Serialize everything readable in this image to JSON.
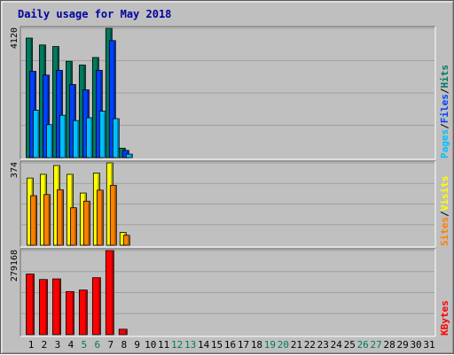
{
  "chart_data": {
    "type": "bar",
    "title": "Daily usage for May 2018",
    "categories": [
      "1",
      "2",
      "3",
      "4",
      "5",
      "6",
      "7",
      "8",
      "9",
      "10",
      "11",
      "12",
      "13",
      "14",
      "15",
      "16",
      "17",
      "18",
      "19",
      "20",
      "21",
      "22",
      "23",
      "24",
      "25",
      "26",
      "27",
      "28",
      "29",
      "30",
      "31"
    ],
    "weekend_days": [
      "5",
      "6",
      "12",
      "13",
      "19",
      "20",
      "26",
      "27"
    ],
    "colors": {
      "hits": "#007a5e",
      "files": "#0040ff",
      "pages": "#00c0ff",
      "visits": "#ffff00",
      "sites": "#ff8000",
      "kbytes": "#ff0000",
      "title": "#0000a0",
      "weekday_label": "#000000",
      "weekend_label": "#007a5e",
      "plot_bg": "#c0c0c0",
      "frame_bg": "#bfbfbf",
      "gridline": "#a0a0a0"
    },
    "panels": [
      {
        "id": "hits-files-pages",
        "ymax_label": "4120",
        "ymax": 4120,
        "legend": [
          {
            "text": "Pages",
            "color": "#00c0ff"
          },
          {
            "text": "/",
            "color": "#000000"
          },
          {
            "text": "Files",
            "color": "#0040ff"
          },
          {
            "text": "/",
            "color": "#000000"
          },
          {
            "text": "Hits",
            "color": "#007a5e"
          }
        ],
        "series": [
          {
            "name": "Hits",
            "values": [
              3810,
              3590,
              3540,
              3070,
              2950,
              3190,
              4120,
              300,
              0,
              0,
              0,
              0,
              0,
              0,
              0,
              0,
              0,
              0,
              0,
              0,
              0,
              0,
              0,
              0,
              0,
              0,
              0,
              0,
              0,
              0,
              0
            ]
          },
          {
            "name": "Files",
            "values": [
              2750,
              2630,
              2780,
              2330,
              2160,
              2780,
              3730,
              230,
              0,
              0,
              0,
              0,
              0,
              0,
              0,
              0,
              0,
              0,
              0,
              0,
              0,
              0,
              0,
              0,
              0,
              0,
              0,
              0,
              0,
              0,
              0
            ]
          },
          {
            "name": "Pages",
            "values": [
              1510,
              1050,
              1350,
              1180,
              1270,
              1480,
              1240,
              110,
              0,
              0,
              0,
              0,
              0,
              0,
              0,
              0,
              0,
              0,
              0,
              0,
              0,
              0,
              0,
              0,
              0,
              0,
              0,
              0,
              0,
              0,
              0
            ]
          }
        ]
      },
      {
        "id": "visits-sites",
        "ymax_label": "374",
        "ymax": 374,
        "legend": [
          {
            "text": "Sites",
            "color": "#ff8000"
          },
          {
            "text": "/",
            "color": "#000000"
          },
          {
            "text": "Visits",
            "color": "#ffff00"
          }
        ],
        "series": [
          {
            "name": "Visits",
            "values": [
              305,
              322,
              362,
              322,
              237,
              328,
              374,
              58,
              0,
              0,
              0,
              0,
              0,
              0,
              0,
              0,
              0,
              0,
              0,
              0,
              0,
              0,
              0,
              0,
              0,
              0,
              0,
              0,
              0,
              0,
              0
            ]
          },
          {
            "name": "Sites",
            "values": [
              225,
              230,
              252,
              170,
              200,
              250,
              272,
              45,
              0,
              0,
              0,
              0,
              0,
              0,
              0,
              0,
              0,
              0,
              0,
              0,
              0,
              0,
              0,
              0,
              0,
              0,
              0,
              0,
              0,
              0,
              0
            ]
          }
        ]
      },
      {
        "id": "kbytes",
        "ymax_label": "279168",
        "ymax": 279168,
        "legend": [
          {
            "text": "KBytes",
            "color": "#ff0000"
          }
        ],
        "series": [
          {
            "name": "KBytes",
            "values": [
              201000,
              183000,
              185000,
              143000,
              148000,
              189000,
              279168,
              18000,
              0,
              0,
              0,
              0,
              0,
              0,
              0,
              0,
              0,
              0,
              0,
              0,
              0,
              0,
              0,
              0,
              0,
              0,
              0,
              0,
              0,
              0,
              0
            ]
          }
        ]
      }
    ]
  }
}
